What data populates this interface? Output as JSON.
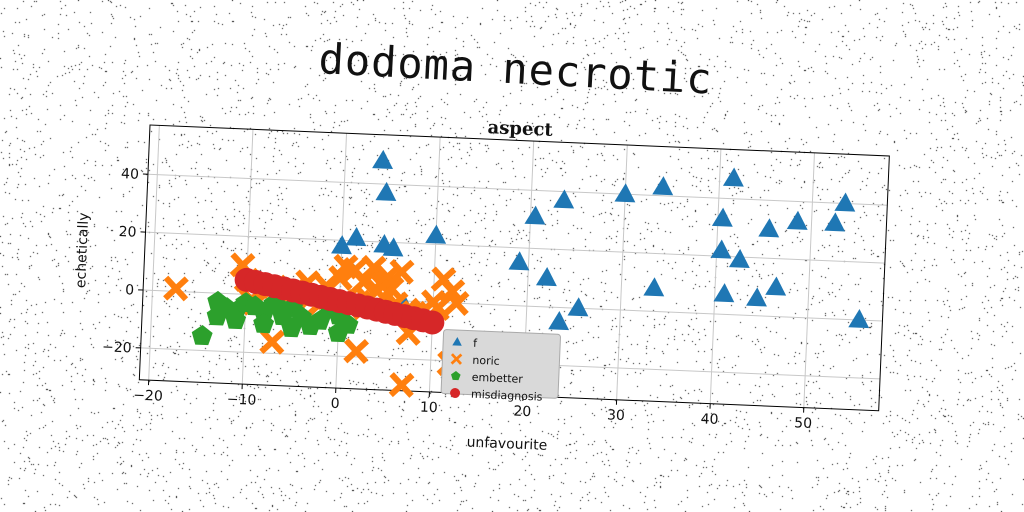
{
  "page": {
    "title": "dodoma necrotic"
  },
  "chart_data": {
    "type": "scatter",
    "title": "aspect",
    "xlabel": "unfavourite",
    "ylabel": "echetically",
    "xlim": [
      -21,
      58
    ],
    "ylim": [
      -31,
      57
    ],
    "xticks": [
      -20,
      -10,
      0,
      10,
      20,
      30,
      40,
      50
    ],
    "yticks": [
      -20,
      0,
      20,
      40
    ],
    "grid": true,
    "legend_position": "lower-center",
    "series": [
      {
        "name": "f",
        "marker": "triangle",
        "color": "#1f77b4",
        "points": [
          [
            4,
            48
          ],
          [
            4.5,
            37
          ],
          [
            1.5,
            21
          ],
          [
            4.5,
            19
          ],
          [
            5.5,
            18
          ],
          [
            0,
            18
          ],
          [
            10,
            23
          ],
          [
            19,
            15
          ],
          [
            22,
            10
          ],
          [
            20.5,
            31
          ],
          [
            23.5,
            37
          ],
          [
            30,
            40
          ],
          [
            34,
            43
          ],
          [
            33.5,
            8
          ],
          [
            23.5,
            -5
          ],
          [
            25.5,
            0
          ],
          [
            41.5,
            47
          ],
          [
            40.5,
            33
          ],
          [
            40.5,
            22
          ],
          [
            42.5,
            19
          ],
          [
            45.5,
            30
          ],
          [
            48.5,
            33
          ],
          [
            41,
            7
          ],
          [
            44.5,
            6
          ],
          [
            46.5,
            10
          ],
          [
            53.5,
            40
          ],
          [
            52.5,
            33
          ],
          [
            55.5,
            0
          ],
          [
            7,
            -2
          ]
        ]
      },
      {
        "name": "noric",
        "marker": "x",
        "color": "#ff7f0e",
        "points": [
          [
            -17.5,
            1
          ],
          [
            -10.5,
            10
          ],
          [
            -7,
            -16
          ],
          [
            -3.5,
            5
          ],
          [
            -1.5,
            4
          ],
          [
            0,
            7
          ],
          [
            0.5,
            11
          ],
          [
            1.5,
            10
          ],
          [
            2.5,
            6
          ],
          [
            3.5,
            11
          ],
          [
            4.5,
            5
          ],
          [
            5.5,
            4
          ],
          [
            6.5,
            10
          ],
          [
            5,
            8
          ],
          [
            4,
            3
          ],
          [
            3,
            0
          ],
          [
            2,
            -1
          ],
          [
            1,
            -3
          ],
          [
            -2,
            -2
          ],
          [
            -5,
            -1
          ],
          [
            -7,
            3
          ],
          [
            -9,
            -3
          ],
          [
            -10,
            5
          ],
          [
            -5,
            2
          ],
          [
            -3,
            0
          ],
          [
            6,
            -1
          ],
          [
            7,
            -4
          ],
          [
            8,
            -4
          ],
          [
            9,
            -3
          ],
          [
            10,
            0
          ],
          [
            11,
            8
          ],
          [
            12,
            4
          ],
          [
            12.5,
            0
          ],
          [
            7.5,
            -11
          ],
          [
            2,
            -18
          ],
          [
            7,
            -29
          ],
          [
            12,
            -21
          ],
          [
            10.5,
            -2
          ],
          [
            -9.5,
            -2
          ]
        ]
      },
      {
        "name": "embetter",
        "marker": "pentagon",
        "color": "#2ca02c",
        "points": [
          [
            -14.5,
            -15
          ],
          [
            -13,
            -3
          ],
          [
            -12,
            -5
          ],
          [
            -11,
            -6
          ],
          [
            -10,
            -3
          ],
          [
            -9,
            -4
          ],
          [
            -8,
            -6
          ],
          [
            -7,
            -3
          ],
          [
            -6,
            -5
          ],
          [
            -5,
            -4
          ],
          [
            -4,
            -7
          ],
          [
            -3,
            -10
          ],
          [
            -2,
            -8
          ],
          [
            -1,
            -4
          ],
          [
            0,
            -6
          ],
          [
            1,
            -9
          ],
          [
            0,
            -12
          ],
          [
            -5,
            -11
          ],
          [
            -8,
            -10
          ],
          [
            -11,
            -9
          ],
          [
            -13,
            -8
          ],
          [
            -6,
            -7
          ]
        ]
      },
      {
        "name": "misdiagnosis",
        "marker": "circle",
        "color": "#d62728",
        "points": [
          [
            -10,
            5
          ],
          [
            -9,
            4.4
          ],
          [
            -8,
            3.8
          ],
          [
            -7,
            3.2
          ],
          [
            -6,
            2.6
          ],
          [
            -5,
            2
          ],
          [
            -4,
            1.4
          ],
          [
            -3,
            0.8
          ],
          [
            -2,
            0.2
          ],
          [
            -1,
            -0.4
          ],
          [
            0,
            -1
          ],
          [
            1,
            -1.6
          ],
          [
            2,
            -2.2
          ],
          [
            3,
            -2.8
          ],
          [
            4,
            -3.4
          ],
          [
            5,
            -4
          ],
          [
            6,
            -4.6
          ],
          [
            7,
            -5.2
          ],
          [
            8,
            -5.8
          ],
          [
            9,
            -6.4
          ],
          [
            10,
            -7
          ]
        ]
      }
    ]
  },
  "colors": {
    "background": "#ffffff",
    "grid": "#c8c8c8",
    "axes": "#000000",
    "legend_face": "#d9d9d9"
  }
}
